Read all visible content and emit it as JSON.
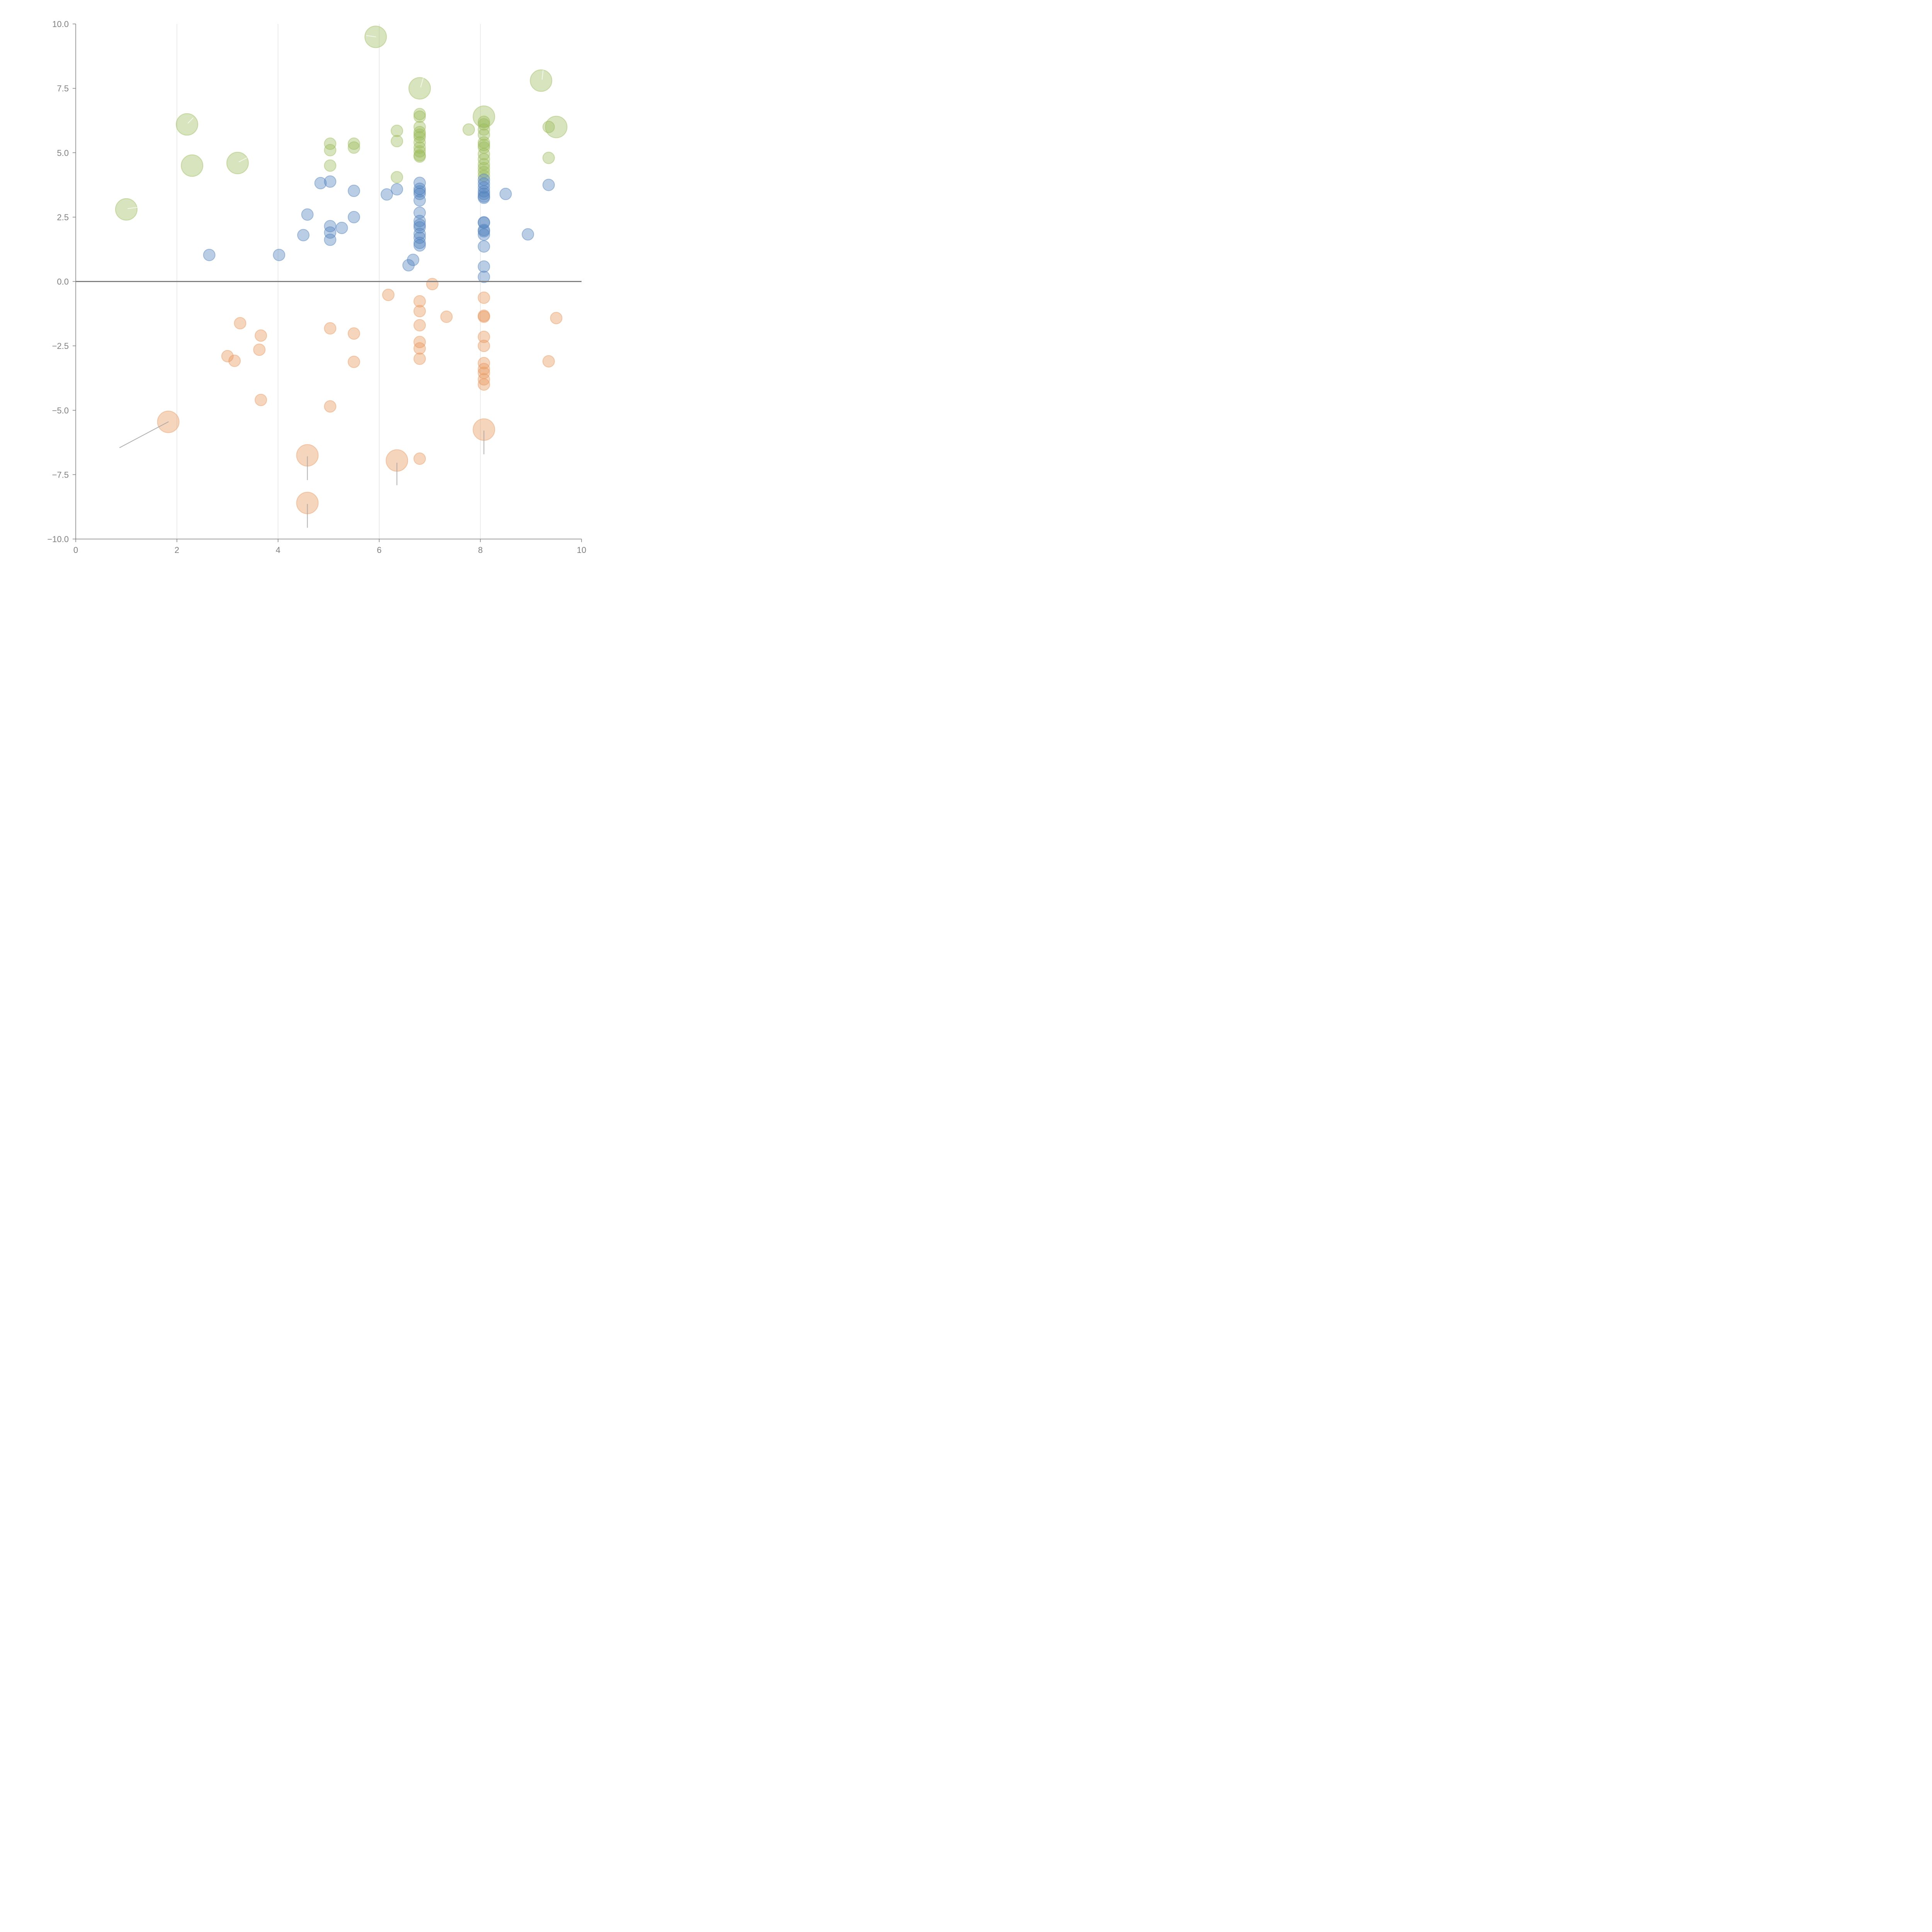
{
  "chart_data": {
    "type": "scatter",
    "subtype": "bubble",
    "title": "",
    "xlabel": "",
    "ylabel": "",
    "xlim": [
      0,
      10
    ],
    "ylim": [
      -10,
      10
    ],
    "x_ticks": [
      "0",
      "2",
      "4",
      "6",
      "8",
      "10"
    ],
    "y_ticks": [
      "10.0",
      "7.5",
      "5.0",
      "2.5",
      "0.0",
      "−2.5",
      "−5.0",
      "−7.5",
      "−10.0"
    ],
    "grid": "vertical",
    "legend": "none",
    "zero_line": true,
    "series": [
      {
        "name": "green",
        "color": "#9bbb59",
        "points": [
          {
            "x": 1.0,
            "y": 2.8,
            "size": 3
          },
          {
            "x": 2.2,
            "y": 6.1,
            "size": 3
          },
          {
            "x": 2.3,
            "y": 4.5,
            "size": 3
          },
          {
            "x": 3.2,
            "y": 4.6,
            "size": 3
          },
          {
            "x": 5.93,
            "y": 9.5,
            "size": 3
          },
          {
            "x": 6.8,
            "y": 7.5,
            "size": 3
          },
          {
            "x": 9.2,
            "y": 7.8,
            "size": 3
          },
          {
            "x": 8.07,
            "y": 6.4,
            "size": 3
          },
          {
            "x": 9.5,
            "y": 6.0,
            "size": 3
          },
          {
            "x": 5.03,
            "y": 5.35,
            "size": 1
          },
          {
            "x": 5.03,
            "y": 5.1,
            "size": 1
          },
          {
            "x": 5.03,
            "y": 4.5,
            "size": 1
          },
          {
            "x": 5.5,
            "y": 5.35,
            "size": 1
          },
          {
            "x": 5.5,
            "y": 5.2,
            "size": 1
          },
          {
            "x": 6.35,
            "y": 5.85,
            "size": 1
          },
          {
            "x": 6.35,
            "y": 5.45,
            "size": 1
          },
          {
            "x": 6.35,
            "y": 4.05,
            "size": 1
          },
          {
            "x": 6.8,
            "y": 6.5,
            "size": 1
          },
          {
            "x": 6.8,
            "y": 6.4,
            "size": 1
          },
          {
            "x": 6.8,
            "y": 6.0,
            "size": 1
          },
          {
            "x": 6.8,
            "y": 5.8,
            "size": 1
          },
          {
            "x": 6.8,
            "y": 5.7,
            "size": 1
          },
          {
            "x": 6.8,
            "y": 5.6,
            "size": 1
          },
          {
            "x": 6.8,
            "y": 5.4,
            "size": 1
          },
          {
            "x": 6.8,
            "y": 5.2,
            "size": 1
          },
          {
            "x": 6.8,
            "y": 5.05,
            "size": 1
          },
          {
            "x": 6.8,
            "y": 4.9,
            "size": 1
          },
          {
            "x": 6.8,
            "y": 4.85,
            "size": 1
          },
          {
            "x": 7.77,
            "y": 5.9,
            "size": 1
          },
          {
            "x": 8.07,
            "y": 6.2,
            "size": 1
          },
          {
            "x": 8.07,
            "y": 6.1,
            "size": 1
          },
          {
            "x": 8.07,
            "y": 5.9,
            "size": 1
          },
          {
            "x": 8.07,
            "y": 5.7,
            "size": 1
          },
          {
            "x": 8.07,
            "y": 5.4,
            "size": 1
          },
          {
            "x": 8.07,
            "y": 5.3,
            "size": 1
          },
          {
            "x": 8.07,
            "y": 5.2,
            "size": 1
          },
          {
            "x": 8.07,
            "y": 4.95,
            "size": 1
          },
          {
            "x": 8.07,
            "y": 4.75,
            "size": 1
          },
          {
            "x": 8.07,
            "y": 4.55,
            "size": 1
          },
          {
            "x": 8.07,
            "y": 4.4,
            "size": 1
          },
          {
            "x": 8.07,
            "y": 4.25,
            "size": 1
          },
          {
            "x": 8.07,
            "y": 4.1,
            "size": 1
          },
          {
            "x": 9.35,
            "y": 6.0,
            "size": 1
          },
          {
            "x": 9.35,
            "y": 4.8,
            "size": 1
          }
        ]
      },
      {
        "name": "blue",
        "color": "#4f81bd",
        "points": [
          {
            "x": 2.64,
            "y": 1.03,
            "size": 1
          },
          {
            "x": 4.02,
            "y": 1.03,
            "size": 1
          },
          {
            "x": 4.5,
            "y": 1.8,
            "size": 1
          },
          {
            "x": 4.58,
            "y": 2.6,
            "size": 1
          },
          {
            "x": 4.84,
            "y": 3.82,
            "size": 1
          },
          {
            "x": 5.03,
            "y": 3.88,
            "size": 1
          },
          {
            "x": 5.03,
            "y": 2.15,
            "size": 1
          },
          {
            "x": 5.03,
            "y": 1.9,
            "size": 1
          },
          {
            "x": 5.03,
            "y": 1.62,
            "size": 1
          },
          {
            "x": 5.26,
            "y": 2.08,
            "size": 1
          },
          {
            "x": 5.5,
            "y": 3.52,
            "size": 1
          },
          {
            "x": 5.5,
            "y": 2.5,
            "size": 1
          },
          {
            "x": 6.15,
            "y": 3.38,
            "size": 1
          },
          {
            "x": 6.35,
            "y": 3.58,
            "size": 1
          },
          {
            "x": 6.58,
            "y": 0.63,
            "size": 1
          },
          {
            "x": 6.67,
            "y": 0.84,
            "size": 1
          },
          {
            "x": 6.8,
            "y": 3.83,
            "size": 1
          },
          {
            "x": 6.8,
            "y": 3.6,
            "size": 1
          },
          {
            "x": 6.8,
            "y": 3.5,
            "size": 1
          },
          {
            "x": 6.8,
            "y": 3.4,
            "size": 1
          },
          {
            "x": 6.8,
            "y": 3.15,
            "size": 1
          },
          {
            "x": 6.8,
            "y": 2.67,
            "size": 1
          },
          {
            "x": 6.8,
            "y": 2.35,
            "size": 1
          },
          {
            "x": 6.8,
            "y": 2.2,
            "size": 1
          },
          {
            "x": 6.8,
            "y": 2.1,
            "size": 1
          },
          {
            "x": 6.8,
            "y": 1.85,
            "size": 1
          },
          {
            "x": 6.8,
            "y": 1.7,
            "size": 1
          },
          {
            "x": 6.8,
            "y": 1.5,
            "size": 1
          },
          {
            "x": 6.8,
            "y": 1.4,
            "size": 1
          },
          {
            "x": 8.07,
            "y": 3.95,
            "size": 1
          },
          {
            "x": 8.07,
            "y": 3.8,
            "size": 1
          },
          {
            "x": 8.07,
            "y": 3.65,
            "size": 1
          },
          {
            "x": 8.07,
            "y": 3.5,
            "size": 1
          },
          {
            "x": 8.07,
            "y": 3.4,
            "size": 1
          },
          {
            "x": 8.07,
            "y": 3.3,
            "size": 1
          },
          {
            "x": 8.07,
            "y": 3.25,
            "size": 1
          },
          {
            "x": 8.07,
            "y": 2.3,
            "size": 1
          },
          {
            "x": 8.07,
            "y": 2.28,
            "size": 1
          },
          {
            "x": 8.07,
            "y": 2.0,
            "size": 1
          },
          {
            "x": 8.07,
            "y": 1.95,
            "size": 1
          },
          {
            "x": 8.07,
            "y": 1.82,
            "size": 1
          },
          {
            "x": 8.07,
            "y": 1.36,
            "size": 1
          },
          {
            "x": 8.07,
            "y": 0.58,
            "size": 1
          },
          {
            "x": 8.07,
            "y": 0.18,
            "size": 1
          },
          {
            "x": 8.5,
            "y": 3.4,
            "size": 1
          },
          {
            "x": 8.94,
            "y": 1.83,
            "size": 1
          },
          {
            "x": 9.35,
            "y": 3.75,
            "size": 1
          }
        ]
      },
      {
        "name": "orange",
        "color": "#e8965a",
        "points": [
          {
            "x": 1.83,
            "y": -5.45,
            "size": 3
          },
          {
            "x": 4.58,
            "y": -6.75,
            "size": 3
          },
          {
            "x": 4.58,
            "y": -8.6,
            "size": 3
          },
          {
            "x": 6.35,
            "y": -6.95,
            "size": 3
          },
          {
            "x": 8.07,
            "y": -5.75,
            "size": 3
          },
          {
            "x": 3.0,
            "y": -2.9,
            "size": 1
          },
          {
            "x": 3.14,
            "y": -3.08,
            "size": 1
          },
          {
            "x": 3.25,
            "y": -1.62,
            "size": 1
          },
          {
            "x": 3.63,
            "y": -2.65,
            "size": 1
          },
          {
            "x": 3.66,
            "y": -2.1,
            "size": 1
          },
          {
            "x": 3.66,
            "y": -4.6,
            "size": 1
          },
          {
            "x": 5.03,
            "y": -1.82,
            "size": 1
          },
          {
            "x": 5.03,
            "y": -4.85,
            "size": 1
          },
          {
            "x": 5.5,
            "y": -2.02,
            "size": 1
          },
          {
            "x": 5.5,
            "y": -3.12,
            "size": 1
          },
          {
            "x": 6.18,
            "y": -0.52,
            "size": 1
          },
          {
            "x": 6.8,
            "y": -0.77,
            "size": 1
          },
          {
            "x": 6.8,
            "y": -1.15,
            "size": 1
          },
          {
            "x": 6.8,
            "y": -1.7,
            "size": 1
          },
          {
            "x": 6.8,
            "y": -2.35,
            "size": 1
          },
          {
            "x": 6.8,
            "y": -2.6,
            "size": 1
          },
          {
            "x": 6.8,
            "y": -3.0,
            "size": 1
          },
          {
            "x": 6.8,
            "y": -6.88,
            "size": 1
          },
          {
            "x": 7.05,
            "y": -0.1,
            "size": 1
          },
          {
            "x": 7.33,
            "y": -1.37,
            "size": 1
          },
          {
            "x": 8.07,
            "y": -0.63,
            "size": 1
          },
          {
            "x": 8.07,
            "y": -1.33,
            "size": 1
          },
          {
            "x": 8.07,
            "y": -1.37,
            "size": 1
          },
          {
            "x": 8.07,
            "y": -2.15,
            "size": 1
          },
          {
            "x": 8.07,
            "y": -2.5,
            "size": 1
          },
          {
            "x": 8.07,
            "y": -3.17,
            "size": 1
          },
          {
            "x": 8.07,
            "y": -3.4,
            "size": 1
          },
          {
            "x": 8.07,
            "y": -3.55,
            "size": 1
          },
          {
            "x": 8.07,
            "y": -3.8,
            "size": 1
          },
          {
            "x": 8.07,
            "y": -4.0,
            "size": 1
          },
          {
            "x": 9.35,
            "y": -3.1,
            "size": 1
          },
          {
            "x": 9.5,
            "y": -1.42,
            "size": 1
          }
        ]
      }
    ],
    "leader_lines": [
      {
        "series": "orange",
        "from": {
          "x": 1.83,
          "y": -5.45
        },
        "to": {
          "x": 0.87,
          "y": -6.45
        },
        "color": "#a6a6a6"
      },
      {
        "series": "orange",
        "from": {
          "x": 4.58,
          "y": -6.8
        },
        "to": {
          "x": 4.58,
          "y": -7.7
        },
        "color": "#a6a6a6"
      },
      {
        "series": "orange",
        "from": {
          "x": 4.58,
          "y": -8.65
        },
        "to": {
          "x": 4.58,
          "y": -9.55
        },
        "color": "#a6a6a6"
      },
      {
        "series": "orange",
        "from": {
          "x": 6.35,
          "y": -7.05
        },
        "to": {
          "x": 6.35,
          "y": -7.9
        },
        "color": "#a6a6a6"
      },
      {
        "series": "orange",
        "from": {
          "x": 8.07,
          "y": -5.8
        },
        "to": {
          "x": 8.07,
          "y": -6.7
        },
        "color": "#a6a6a6"
      },
      {
        "series": "green",
        "from": {
          "x": 1.03,
          "y": 2.83
        },
        "to": {
          "x": 1.23,
          "y": 2.88
        },
        "color": "#ffffff"
      },
      {
        "series": "green",
        "from": {
          "x": 2.22,
          "y": 6.15
        },
        "to": {
          "x": 2.32,
          "y": 6.35
        },
        "color": "#ffffff"
      },
      {
        "series": "green",
        "from": {
          "x": 3.23,
          "y": 4.65
        },
        "to": {
          "x": 3.38,
          "y": 4.8
        },
        "color": "#ffffff"
      },
      {
        "series": "green",
        "from": {
          "x": 5.93,
          "y": 9.5
        },
        "to": {
          "x": 5.75,
          "y": 9.55
        },
        "color": "#ffffff"
      },
      {
        "series": "green",
        "from": {
          "x": 6.82,
          "y": 7.55
        },
        "to": {
          "x": 6.87,
          "y": 7.9
        },
        "color": "#ffffff"
      },
      {
        "series": "green",
        "from": {
          "x": 9.22,
          "y": 7.85
        },
        "to": {
          "x": 9.24,
          "y": 8.2
        },
        "color": "#ffffff"
      }
    ]
  }
}
